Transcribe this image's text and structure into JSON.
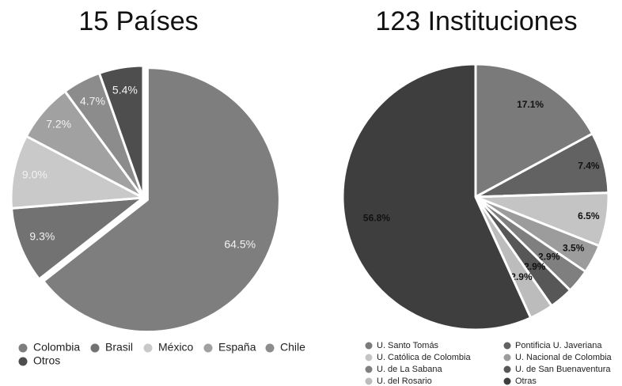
{
  "chart_data": [
    {
      "type": "pie",
      "title": "15 Países",
      "categories": [
        "Colombia",
        "Brasil",
        "México",
        "España",
        "Chile",
        "Otros"
      ],
      "values": [
        64.5,
        9.3,
        9.0,
        7.2,
        4.7,
        5.4
      ],
      "labels": [
        "64.5%",
        "9.3%",
        "9.0%",
        "7.2%",
        "4.7%",
        "5.4%"
      ],
      "colors": [
        "#7e7e7e",
        "#727272",
        "#c9c9c9",
        "#a1a1a1",
        "#8c8c8c",
        "#4e4e4e"
      ],
      "legend_placement": "bottom"
    },
    {
      "type": "pie",
      "title": "123 Instituciones",
      "categories": [
        "U. Santo Tomás",
        "Pontificia U. Javeriana",
        "U. Católica de Colombia",
        "U. Nacional de Colombia",
        "U. de La Sabana",
        "U. de San Buenaventura",
        "U. del Rosario",
        "Otras"
      ],
      "values": [
        17.1,
        7.4,
        6.5,
        3.5,
        2.9,
        2.9,
        2.9,
        56.8
      ],
      "labels": [
        "17.1%",
        "7.4%",
        "6.5%",
        "3.5%",
        "2.9%",
        "2.9%",
        "2.9%",
        "56.8%"
      ],
      "colors": [
        "#7a7a7a",
        "#626262",
        "#c4c4c4",
        "#9c9c9c",
        "#7f7f7f",
        "#575757",
        "#bcbcbc",
        "#3e3e3e"
      ],
      "legend_placement": "bottom"
    }
  ]
}
